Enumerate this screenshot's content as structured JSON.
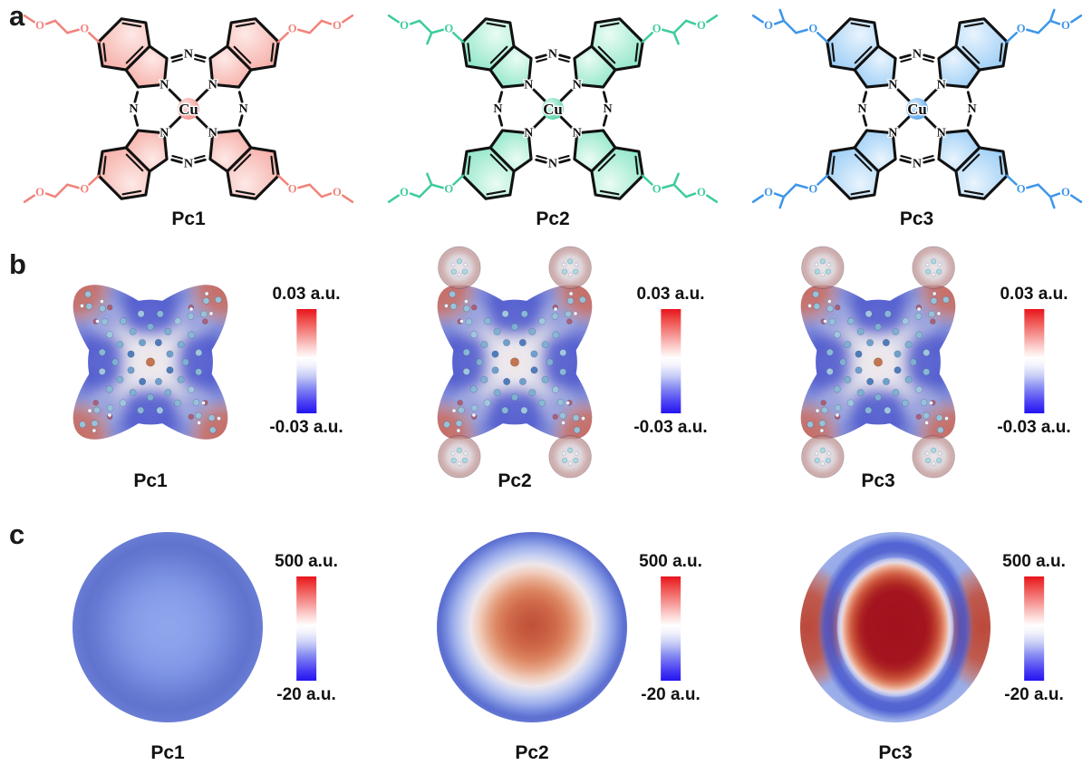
{
  "molecules": [
    {
      "name": "Pc1",
      "accent": "#f1837b",
      "fill_light": "#fde9e7",
      "fill_mid": "#f5a49c"
    },
    {
      "name": "Pc2",
      "accent": "#3ecc9e",
      "fill_light": "#eafcf4",
      "fill_mid": "#7fe2c0"
    },
    {
      "name": "Pc3",
      "accent": "#3e96e8",
      "fill_light": "#e9f4fd",
      "fill_mid": "#8ec7f5"
    }
  ],
  "atoms": {
    "metal": "Cu",
    "nitrogen": "N",
    "oxygen": "O"
  },
  "panel_a": {
    "letter": "a"
  },
  "panel_b": {
    "letter": "b",
    "colorbar": {
      "max": "0.03 a.u.",
      "min": "-0.03 a.u.",
      "max_value": 0.03,
      "min_value": -0.03,
      "unit": "a.u."
    }
  },
  "panel_c": {
    "letter": "c",
    "colorbar": {
      "max": "500 a.u.",
      "min": "-20 a.u.",
      "max_value": 500,
      "min_value": -20,
      "unit": "a.u."
    }
  },
  "colors": {
    "colorbar_top": "#e8141c",
    "colorbar_bottom": "#2314f0",
    "esp_surface_base": "#b0b8e2",
    "esp_positive_edge": "#c9685c",
    "esp_negative_patch": "#4450cc",
    "cu_ball": "#c4744e",
    "carbon_ball": "#8fc0d8",
    "bond_line": "#111111"
  }
}
